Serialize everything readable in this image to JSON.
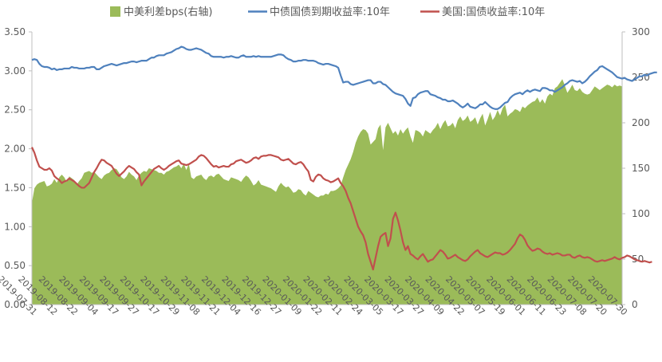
{
  "chart_data": {
    "type": "line",
    "legend": {
      "position": "top",
      "items": [
        {
          "label": "中美利差bps(右轴)",
          "color": "#9BBB59",
          "kind": "area"
        },
        {
          "label": "中债国债到期收益率:10年",
          "color": "#4F81BD",
          "kind": "line"
        },
        {
          "label": "美国:国债收益率:10年",
          "color": "#C0504D",
          "kind": "line"
        }
      ]
    },
    "left_axis": {
      "min": 0.0,
      "max": 3.5,
      "ticks": [
        "0.00",
        "0.50",
        "1.00",
        "1.50",
        "2.00",
        "2.50",
        "3.00",
        "3.50"
      ]
    },
    "right_axis": {
      "min": 0,
      "max": 300,
      "ticks": [
        "0",
        "50",
        "100",
        "150",
        "200",
        "250",
        "300"
      ]
    },
    "x_tick_labels": [
      "2019-07-31",
      "2019-08-12",
      "2019-08-22",
      "2019-09-04",
      "2019-09-17",
      "2019-09-27",
      "2019-10-17",
      "2019-10-29",
      "2019-11-08",
      "2019-11-21",
      "2019-12-04",
      "2019-12-16",
      "2019-12-27",
      "2020-01-09",
      "2020-01-22",
      "2020-02-11",
      "2020-02-24",
      "2020-03-05",
      "2020-03-17",
      "2020-03-27",
      "2020-04-09",
      "2020-04-22",
      "2020-05-07",
      "2020-05-19",
      "2020-06-01",
      "2020-06-11",
      "2020-06-23",
      "2020-07-08",
      "2020-07-20",
      "2020-07-30"
    ],
    "grid": false,
    "series": [
      {
        "name": "中美利差bps(右轴)",
        "axis": "right",
        "type": "area",
        "color": "#9BBB59",
        "values": [
          112,
          128,
          132,
          134,
          135,
          136,
          130,
          131,
          133,
          138,
          134,
          140,
          143,
          140,
          135,
          141,
          139,
          137,
          132,
          136,
          139,
          145,
          146,
          147,
          145,
          146,
          143,
          140,
          138,
          142,
          144,
          145,
          148,
          150,
          149,
          145,
          140,
          138,
          141,
          146,
          143,
          141,
          137,
          142,
          145,
          147,
          146,
          150,
          149,
          148,
          147,
          145,
          145,
          143,
          146,
          147,
          149,
          151,
          152,
          154,
          150,
          155,
          148,
          155,
          140,
          138,
          141,
          142,
          143,
          139,
          137,
          141,
          142,
          140,
          143,
          144,
          141,
          138,
          137,
          136,
          140,
          139,
          138,
          137,
          135,
          139,
          142,
          140,
          136,
          131,
          133,
          137,
          132,
          131,
          130,
          129,
          128,
          126,
          124,
          130,
          134,
          131,
          129,
          130,
          127,
          123,
          124,
          127,
          126,
          122,
          120,
          125,
          123,
          121,
          119,
          118,
          120,
          120,
          122,
          121,
          125,
          125,
          126,
          128,
          131,
          140,
          148,
          154,
          160,
          168,
          178,
          185,
          190,
          193,
          192,
          188,
          176,
          179,
          182,
          194,
          198,
          170,
          195,
          200,
          194,
          188,
          191,
          186,
          193,
          188,
          192,
          195,
          185,
          178,
          192,
          191,
          189,
          185,
          192,
          190,
          188,
          192,
          195,
          200,
          193,
          199,
          203,
          196,
          197,
          200,
          194,
          203,
          207,
          202,
          204,
          208,
          201,
          203,
          206,
          198,
          205,
          210,
          197,
          204,
          212,
          203,
          207,
          214,
          208,
          216,
          220,
          207,
          210,
          212,
          215,
          214,
          212,
          218,
          216,
          219,
          221,
          223,
          224,
          228,
          222,
          226,
          221,
          229,
          232,
          230,
          238,
          240,
          244,
          248,
          241,
          233,
          237,
          242,
          236,
          235,
          238,
          234,
          232,
          231,
          232,
          236,
          240,
          238,
          236,
          238,
          240,
          242,
          241,
          239,
          242,
          240,
          241,
          240
        ]
      },
      {
        "name": "中债国债到期收益率:10年",
        "axis": "left",
        "type": "line",
        "color": "#4F81BD",
        "values": [
          3.14,
          3.15,
          3.14,
          3.09,
          3.06,
          3.05,
          3.05,
          3.04,
          3.02,
          3.03,
          3.01,
          3.02,
          3.02,
          3.03,
          3.03,
          3.03,
          3.05,
          3.04,
          3.04,
          3.03,
          3.03,
          3.03,
          3.04,
          3.04,
          3.05,
          3.05,
          3.02,
          3.02,
          3.04,
          3.06,
          3.07,
          3.08,
          3.09,
          3.08,
          3.07,
          3.08,
          3.09,
          3.1,
          3.1,
          3.11,
          3.12,
          3.12,
          3.11,
          3.12,
          3.13,
          3.13,
          3.13,
          3.15,
          3.17,
          3.17,
          3.19,
          3.2,
          3.2,
          3.2,
          3.22,
          3.23,
          3.24,
          3.26,
          3.28,
          3.29,
          3.31,
          3.3,
          3.28,
          3.27,
          3.27,
          3.28,
          3.29,
          3.28,
          3.27,
          3.25,
          3.23,
          3.22,
          3.19,
          3.18,
          3.18,
          3.18,
          3.18,
          3.17,
          3.18,
          3.18,
          3.19,
          3.18,
          3.17,
          3.17,
          3.19,
          3.2,
          3.18,
          3.18,
          3.18,
          3.19,
          3.18,
          3.19,
          3.18,
          3.18,
          3.18,
          3.18,
          3.18,
          3.19,
          3.2,
          3.21,
          3.21,
          3.2,
          3.17,
          3.15,
          3.14,
          3.12,
          3.12,
          3.13,
          3.13,
          3.14,
          3.14,
          3.13,
          3.13,
          3.13,
          3.12,
          3.1,
          3.09,
          3.08,
          3.09,
          3.09,
          3.08,
          3.07,
          3.06,
          3.04,
          2.94,
          2.85,
          2.86,
          2.86,
          2.83,
          2.82,
          2.83,
          2.84,
          2.85,
          2.86,
          2.87,
          2.88,
          2.88,
          2.84,
          2.84,
          2.86,
          2.86,
          2.83,
          2.82,
          2.79,
          2.76,
          2.73,
          2.71,
          2.7,
          2.69,
          2.68,
          2.64,
          2.58,
          2.55,
          2.65,
          2.66,
          2.7,
          2.72,
          2.73,
          2.74,
          2.74,
          2.7,
          2.69,
          2.68,
          2.66,
          2.65,
          2.63,
          2.63,
          2.61,
          2.61,
          2.62,
          2.6,
          2.58,
          2.55,
          2.53,
          2.55,
          2.58,
          2.54,
          2.53,
          2.52,
          2.54,
          2.57,
          2.57,
          2.6,
          2.57,
          2.54,
          2.52,
          2.51,
          2.51,
          2.53,
          2.56,
          2.59,
          2.6,
          2.65,
          2.68,
          2.7,
          2.71,
          2.72,
          2.7,
          2.73,
          2.75,
          2.73,
          2.75,
          2.76,
          2.75,
          2.74,
          2.78,
          2.78,
          2.77,
          2.75,
          2.75,
          2.73,
          2.75,
          2.77,
          2.79,
          2.82,
          2.84,
          2.87,
          2.88,
          2.87,
          2.86,
          2.87,
          2.84,
          2.86,
          2.89,
          2.93,
          2.96,
          2.99,
          3.01,
          3.05,
          3.06,
          3.04,
          3.02,
          3.0,
          2.98,
          2.95,
          2.92,
          2.91,
          2.9,
          2.91,
          2.89,
          2.88,
          2.87,
          2.89,
          2.91,
          2.93,
          2.93,
          2.95,
          2.94,
          2.96,
          2.97,
          2.98,
          2.98
        ]
      },
      {
        "name": "美国:国债收益率:10年",
        "axis": "left",
        "type": "line",
        "color": "#C0504D",
        "values": [
          2.02,
          1.95,
          1.85,
          1.77,
          1.75,
          1.73,
          1.73,
          1.75,
          1.72,
          1.65,
          1.62,
          1.6,
          1.56,
          1.58,
          1.59,
          1.62,
          1.6,
          1.58,
          1.55,
          1.52,
          1.5,
          1.5,
          1.53,
          1.56,
          1.63,
          1.7,
          1.75,
          1.81,
          1.86,
          1.85,
          1.82,
          1.8,
          1.78,
          1.73,
          1.68,
          1.65,
          1.68,
          1.71,
          1.75,
          1.78,
          1.76,
          1.74,
          1.7,
          1.67,
          1.53,
          1.58,
          1.62,
          1.66,
          1.7,
          1.74,
          1.76,
          1.78,
          1.75,
          1.73,
          1.75,
          1.78,
          1.8,
          1.82,
          1.84,
          1.85,
          1.81,
          1.8,
          1.79,
          1.8,
          1.82,
          1.84,
          1.86,
          1.9,
          1.92,
          1.91,
          1.88,
          1.84,
          1.8,
          1.77,
          1.78,
          1.76,
          1.77,
          1.78,
          1.77,
          1.77,
          1.8,
          1.81,
          1.84,
          1.85,
          1.86,
          1.84,
          1.82,
          1.83,
          1.85,
          1.88,
          1.89,
          1.87,
          1.9,
          1.91,
          1.91,
          1.92,
          1.92,
          1.91,
          1.9,
          1.89,
          1.86,
          1.85,
          1.86,
          1.87,
          1.84,
          1.81,
          1.8,
          1.82,
          1.83,
          1.8,
          1.75,
          1.71,
          1.6,
          1.58,
          1.64,
          1.67,
          1.66,
          1.62,
          1.6,
          1.59,
          1.57,
          1.58,
          1.6,
          1.62,
          1.56,
          1.52,
          1.46,
          1.37,
          1.3,
          1.2,
          1.1,
          1.0,
          0.94,
          0.89,
          0.8,
          0.65,
          0.55,
          0.45,
          0.6,
          0.75,
          0.87,
          0.9,
          0.92,
          0.75,
          0.85,
          1.1,
          1.18,
          1.08,
          0.95,
          0.8,
          0.7,
          0.75,
          0.65,
          0.63,
          0.6,
          0.58,
          0.62,
          0.65,
          0.6,
          0.55,
          0.57,
          0.58,
          0.62,
          0.66,
          0.7,
          0.68,
          0.64,
          0.59,
          0.6,
          0.62,
          0.64,
          0.61,
          0.59,
          0.57,
          0.56,
          0.58,
          0.62,
          0.65,
          0.68,
          0.7,
          0.66,
          0.64,
          0.62,
          0.61,
          0.63,
          0.65,
          0.67,
          0.66,
          0.66,
          0.64,
          0.65,
          0.67,
          0.7,
          0.74,
          0.78,
          0.85,
          0.9,
          0.88,
          0.83,
          0.76,
          0.72,
          0.69,
          0.7,
          0.72,
          0.71,
          0.68,
          0.66,
          0.65,
          0.66,
          0.64,
          0.65,
          0.66,
          0.65,
          0.63,
          0.63,
          0.64,
          0.64,
          0.61,
          0.6,
          0.62,
          0.63,
          0.61,
          0.6,
          0.61,
          0.6,
          0.58,
          0.56,
          0.55,
          0.56,
          0.57,
          0.56,
          0.57,
          0.58,
          0.59,
          0.61,
          0.59,
          0.58,
          0.6,
          0.61,
          0.63,
          0.62,
          0.6,
          0.58,
          0.57,
          0.56,
          0.55,
          0.56,
          0.55,
          0.54,
          0.55
        ]
      }
    ]
  }
}
